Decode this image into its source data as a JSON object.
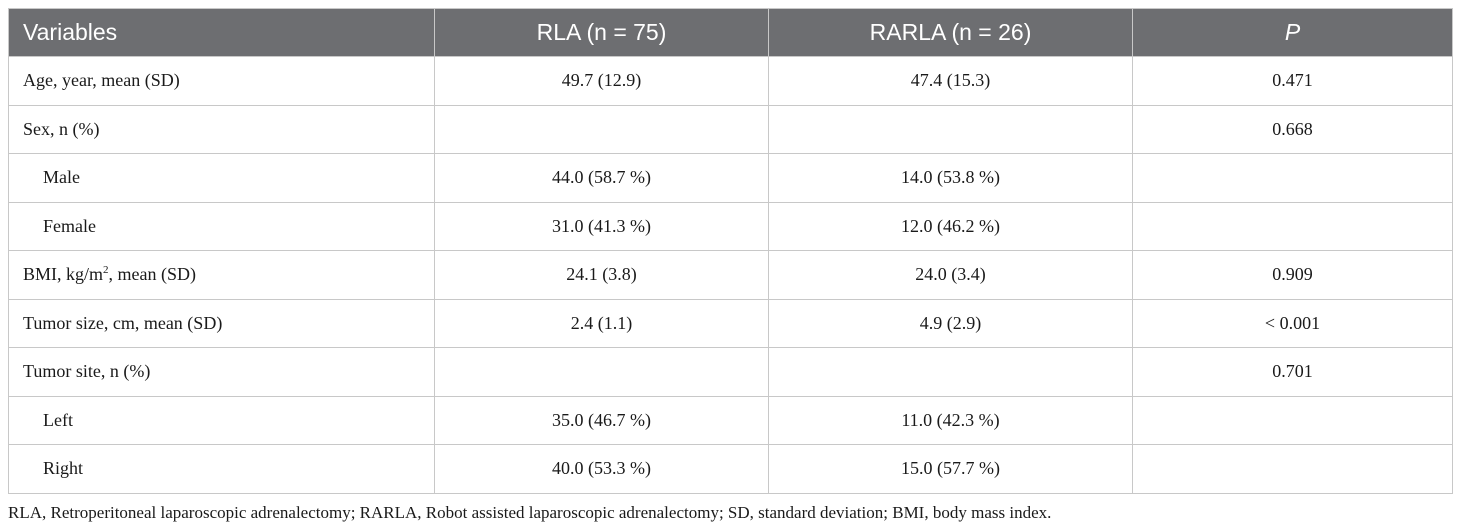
{
  "table": {
    "headers": [
      "Variables",
      "RLA (n = 75)",
      "RARLA (n = 26)",
      "P"
    ],
    "rows": [
      {
        "label": "Age, year, mean (SD)",
        "rla": "49.7 (12.9)",
        "rarla": "47.4 (15.3)",
        "p": "0.471"
      },
      {
        "label": "Sex, n (%)",
        "rla": "",
        "rarla": "",
        "p": "0.668"
      },
      {
        "label": "Male",
        "rla": "44.0 (58.7 %)",
        "rarla": "14.0 (53.8 %)",
        "p": ""
      },
      {
        "label": "Female",
        "rla": "31.0 (41.3 %)",
        "rarla": "12.0 (46.2 %)",
        "p": ""
      },
      {
        "label_pre": "BMI, kg/m",
        "label_sup": "2",
        "label_post": ", mean (SD)",
        "rla": "24.1 (3.8)",
        "rarla": "24.0 (3.4)",
        "p": "0.909"
      },
      {
        "label": "Tumor size, cm, mean (SD)",
        "rla": "2.4 (1.1)",
        "rarla": "4.9 (2.9)",
        "p": "< 0.001"
      },
      {
        "label": "Tumor site, n (%)",
        "rla": "",
        "rarla": "",
        "p": "0.701"
      },
      {
        "label": "Left",
        "rla": "35.0 (46.7 %)",
        "rarla": "11.0 (42.3 %)",
        "p": ""
      },
      {
        "label": "Right",
        "rla": "40.0 (53.3 %)",
        "rarla": "15.0 (57.7 %)",
        "p": ""
      }
    ]
  },
  "footnote": "RLA, Retroperitoneal laparoscopic adrenalectomy; RARLA, Robot assisted laparoscopic adrenalectomy; SD, standard deviation; BMI, body mass index.",
  "colors": {
    "header_bg": "#6d6e71",
    "header_text": "#ffffff",
    "border": "#c8c8c8"
  }
}
